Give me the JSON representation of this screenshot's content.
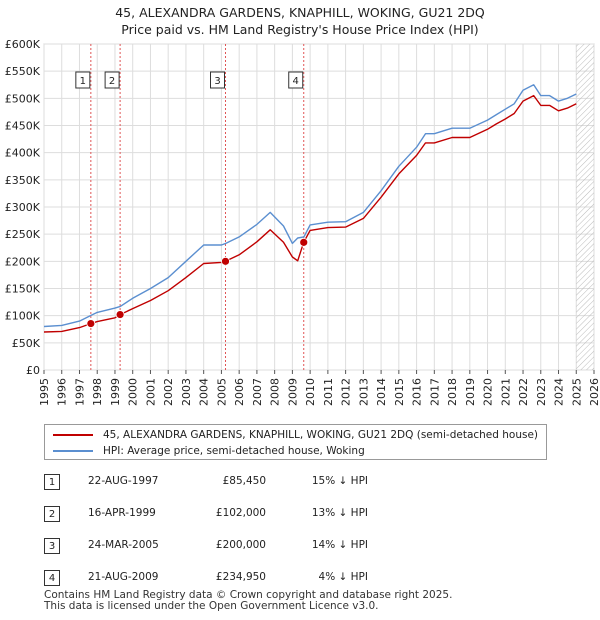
{
  "title": {
    "line1": "45, ALEXANDRA GARDENS, KNAPHILL, WOKING, GU21 2DQ",
    "line2": "Price paid vs. HM Land Registry's House Price Index (HPI)"
  },
  "chart_data": {
    "type": "line",
    "title": "Price paid vs. HM Land Registry's House Price Index (HPI)",
    "xlim": [
      1995,
      2026
    ],
    "ylim": [
      0,
      600000
    ],
    "y_ticks": [
      {
        "value": 0,
        "label": "£0"
      },
      {
        "value": 50000,
        "label": "£50K"
      },
      {
        "value": 100000,
        "label": "£100K"
      },
      {
        "value": 150000,
        "label": "£150K"
      },
      {
        "value": 200000,
        "label": "£200K"
      },
      {
        "value": 250000,
        "label": "£250K"
      },
      {
        "value": 300000,
        "label": "£300K"
      },
      {
        "value": 350000,
        "label": "£350K"
      },
      {
        "value": 400000,
        "label": "£400K"
      },
      {
        "value": 450000,
        "label": "£450K"
      },
      {
        "value": 500000,
        "label": "£500K"
      },
      {
        "value": 550000,
        "label": "£550K"
      },
      {
        "value": 600000,
        "label": "£600K"
      }
    ],
    "x_ticks": [
      "1995",
      "1996",
      "1997",
      "1998",
      "1999",
      "2000",
      "2001",
      "2002",
      "2003",
      "2004",
      "2005",
      "2006",
      "2007",
      "2008",
      "2009",
      "2010",
      "2011",
      "2012",
      "2013",
      "2014",
      "2015",
      "2016",
      "2017",
      "2018",
      "2019",
      "2020",
      "2021",
      "2022",
      "2023",
      "2024",
      "2025",
      "2026"
    ],
    "forecast_start": 2025.0,
    "series": [
      {
        "name": "HPI: Average price, semi-detached house, Woking",
        "color": "#5b8fd0",
        "x": [
          1995.0,
          1996.0,
          1997.0,
          1997.65,
          1998.0,
          1999.0,
          1999.3,
          2000.0,
          2001.0,
          2002.0,
          2003.0,
          2004.0,
          2005.0,
          2005.2,
          2006.0,
          2007.0,
          2007.75,
          2008.5,
          2009.0,
          2009.3,
          2009.65,
          2010.0,
          2011.0,
          2012.0,
          2013.0,
          2014.0,
          2015.0,
          2016.0,
          2016.5,
          2017.0,
          2018.0,
          2019.0,
          2020.0,
          2020.5,
          2021.0,
          2021.5,
          2022.0,
          2022.6,
          2023.0,
          2023.5,
          2024.0,
          2024.5,
          2025.0
        ],
        "y": [
          80000,
          82000,
          90000,
          100500,
          106000,
          114000,
          117000,
          132000,
          150000,
          170000,
          200000,
          230000,
          230000,
          232500,
          245000,
          268000,
          290000,
          265000,
          233000,
          243000,
          245000,
          267000,
          272000,
          273000,
          290000,
          330000,
          375000,
          410000,
          435000,
          435000,
          445000,
          445000,
          460000,
          470000,
          480000,
          490000,
          515000,
          525000,
          505000,
          505000,
          495000,
          500000,
          508000
        ]
      },
      {
        "name": "45, ALEXANDRA GARDENS, KNAPHILL, WOKING, GU21 2DQ (semi-detached house)",
        "color": "#c00000",
        "x": [
          1995.0,
          1996.0,
          1997.0,
          1997.64,
          1998.0,
          1999.0,
          1999.29,
          2000.0,
          2001.0,
          2002.0,
          2003.0,
          2004.0,
          2005.0,
          2005.23,
          2006.0,
          2007.0,
          2007.75,
          2008.5,
          2009.0,
          2009.3,
          2009.64,
          2010.0,
          2011.0,
          2012.0,
          2013.0,
          2014.0,
          2015.0,
          2016.0,
          2016.5,
          2017.0,
          2018.0,
          2019.0,
          2020.0,
          2020.5,
          2021.0,
          2021.5,
          2022.0,
          2022.6,
          2023.0,
          2023.5,
          2024.0,
          2024.5,
          2025.0
        ],
        "y": [
          70000,
          71000,
          78000,
          85450,
          89000,
          96000,
          102000,
          113000,
          128000,
          146000,
          170000,
          196000,
          198000,
          200000,
          212000,
          236000,
          258000,
          235000,
          208000,
          201000,
          234950,
          257000,
          262000,
          263000,
          279000,
          318000,
          361000,
          395000,
          418000,
          418000,
          428000,
          428000,
          443000,
          453000,
          462000,
          472000,
          495000,
          505000,
          487000,
          487000,
          477000,
          482000,
          490000
        ]
      }
    ],
    "sales": [
      {
        "n": "1",
        "x": 1997.64,
        "price": 85450
      },
      {
        "n": "2",
        "x": 1999.29,
        "price": 102000
      },
      {
        "n": "3",
        "x": 2005.23,
        "price": 200000
      },
      {
        "n": "4",
        "x": 2009.64,
        "price": 234950
      }
    ]
  },
  "legend": {
    "property_label": "45, ALEXANDRA GARDENS, KNAPHILL, WOKING, GU21 2DQ (semi-detached house)",
    "hpi_label": "HPI: Average price, semi-detached house, Woking",
    "property_color": "#c00000",
    "hpi_color": "#5b8fd0"
  },
  "sales_table": [
    {
      "num": "1",
      "date": "22-AUG-1997",
      "price": "£85,450",
      "hpi": "15% ↓ HPI"
    },
    {
      "num": "2",
      "date": "16-APR-1999",
      "price": "£102,000",
      "hpi": "13% ↓ HPI"
    },
    {
      "num": "3",
      "date": "24-MAR-2005",
      "price": "£200,000",
      "hpi": "14% ↓ HPI"
    },
    {
      "num": "4",
      "date": "21-AUG-2009",
      "price": "£234,950",
      "hpi": "4% ↓ HPI"
    }
  ],
  "footer": {
    "line1": "Contains HM Land Registry data © Crown copyright and database right 2025.",
    "line2": "This data is licensed under the Open Government Licence v3.0."
  }
}
